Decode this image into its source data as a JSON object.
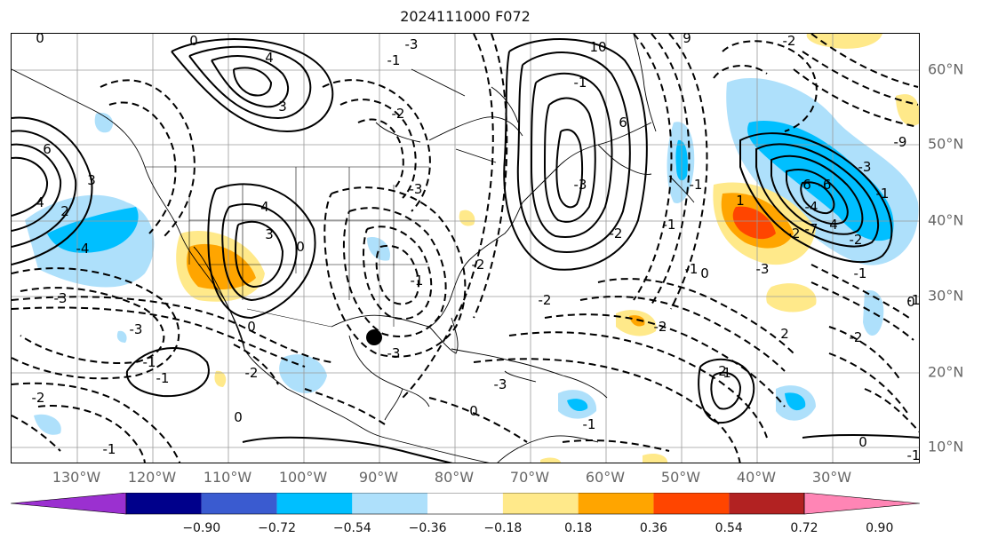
{
  "title": "2024111000 F072",
  "lon_labels": [
    "130°W",
    "120°W",
    "110°W",
    "100°W",
    "90°W",
    "80°W",
    "70°W",
    "60°W",
    "50°W",
    "40°W",
    "30°W"
  ],
  "lat_labels": [
    "60°N",
    "50°N",
    "40°N",
    "30°N",
    "20°N",
    "10°N"
  ],
  "colorbar": {
    "labels": [
      "−0.90",
      "−0.72",
      "−0.54",
      "−0.36",
      "−0.18",
      "0.18",
      "0.36",
      "0.54",
      "0.72",
      "0.90"
    ],
    "colors": [
      "#9b30d0",
      "#00008b",
      "#3a5bd0",
      "#00bfff",
      "#aee0fb",
      "#ffffff",
      "#ffe98a",
      "#ffa500",
      "#ff4500",
      "#b22222",
      "#ff85b5"
    ]
  },
  "contour_labels": [
    "0",
    "0",
    "4",
    "3",
    "6",
    "4",
    "2",
    "3",
    "-4",
    "4",
    "3",
    "0",
    "-3",
    "-3",
    "-1",
    "-1",
    "-2",
    "0",
    "0",
    "10",
    "9",
    "6",
    "-2",
    "-3",
    "-3",
    "-1",
    "-2",
    "-1",
    "1",
    "-1",
    "0",
    "-9",
    "-3",
    "-3",
    "-1",
    "-3",
    "-2",
    "-2",
    "-2",
    "-1",
    "0",
    "-1",
    "2",
    "-4",
    "-6",
    "-7",
    "2",
    "6",
    "4",
    "0",
    "-1",
    "-2",
    "-1",
    "0",
    "-2",
    "1",
    "-1",
    "-3",
    "-3",
    "-2",
    "-2",
    "-1",
    "-2",
    "-1",
    "-1"
  ],
  "marker": {
    "name": "filled-dot",
    "lon": -92.0,
    "lat": 24.5
  }
}
